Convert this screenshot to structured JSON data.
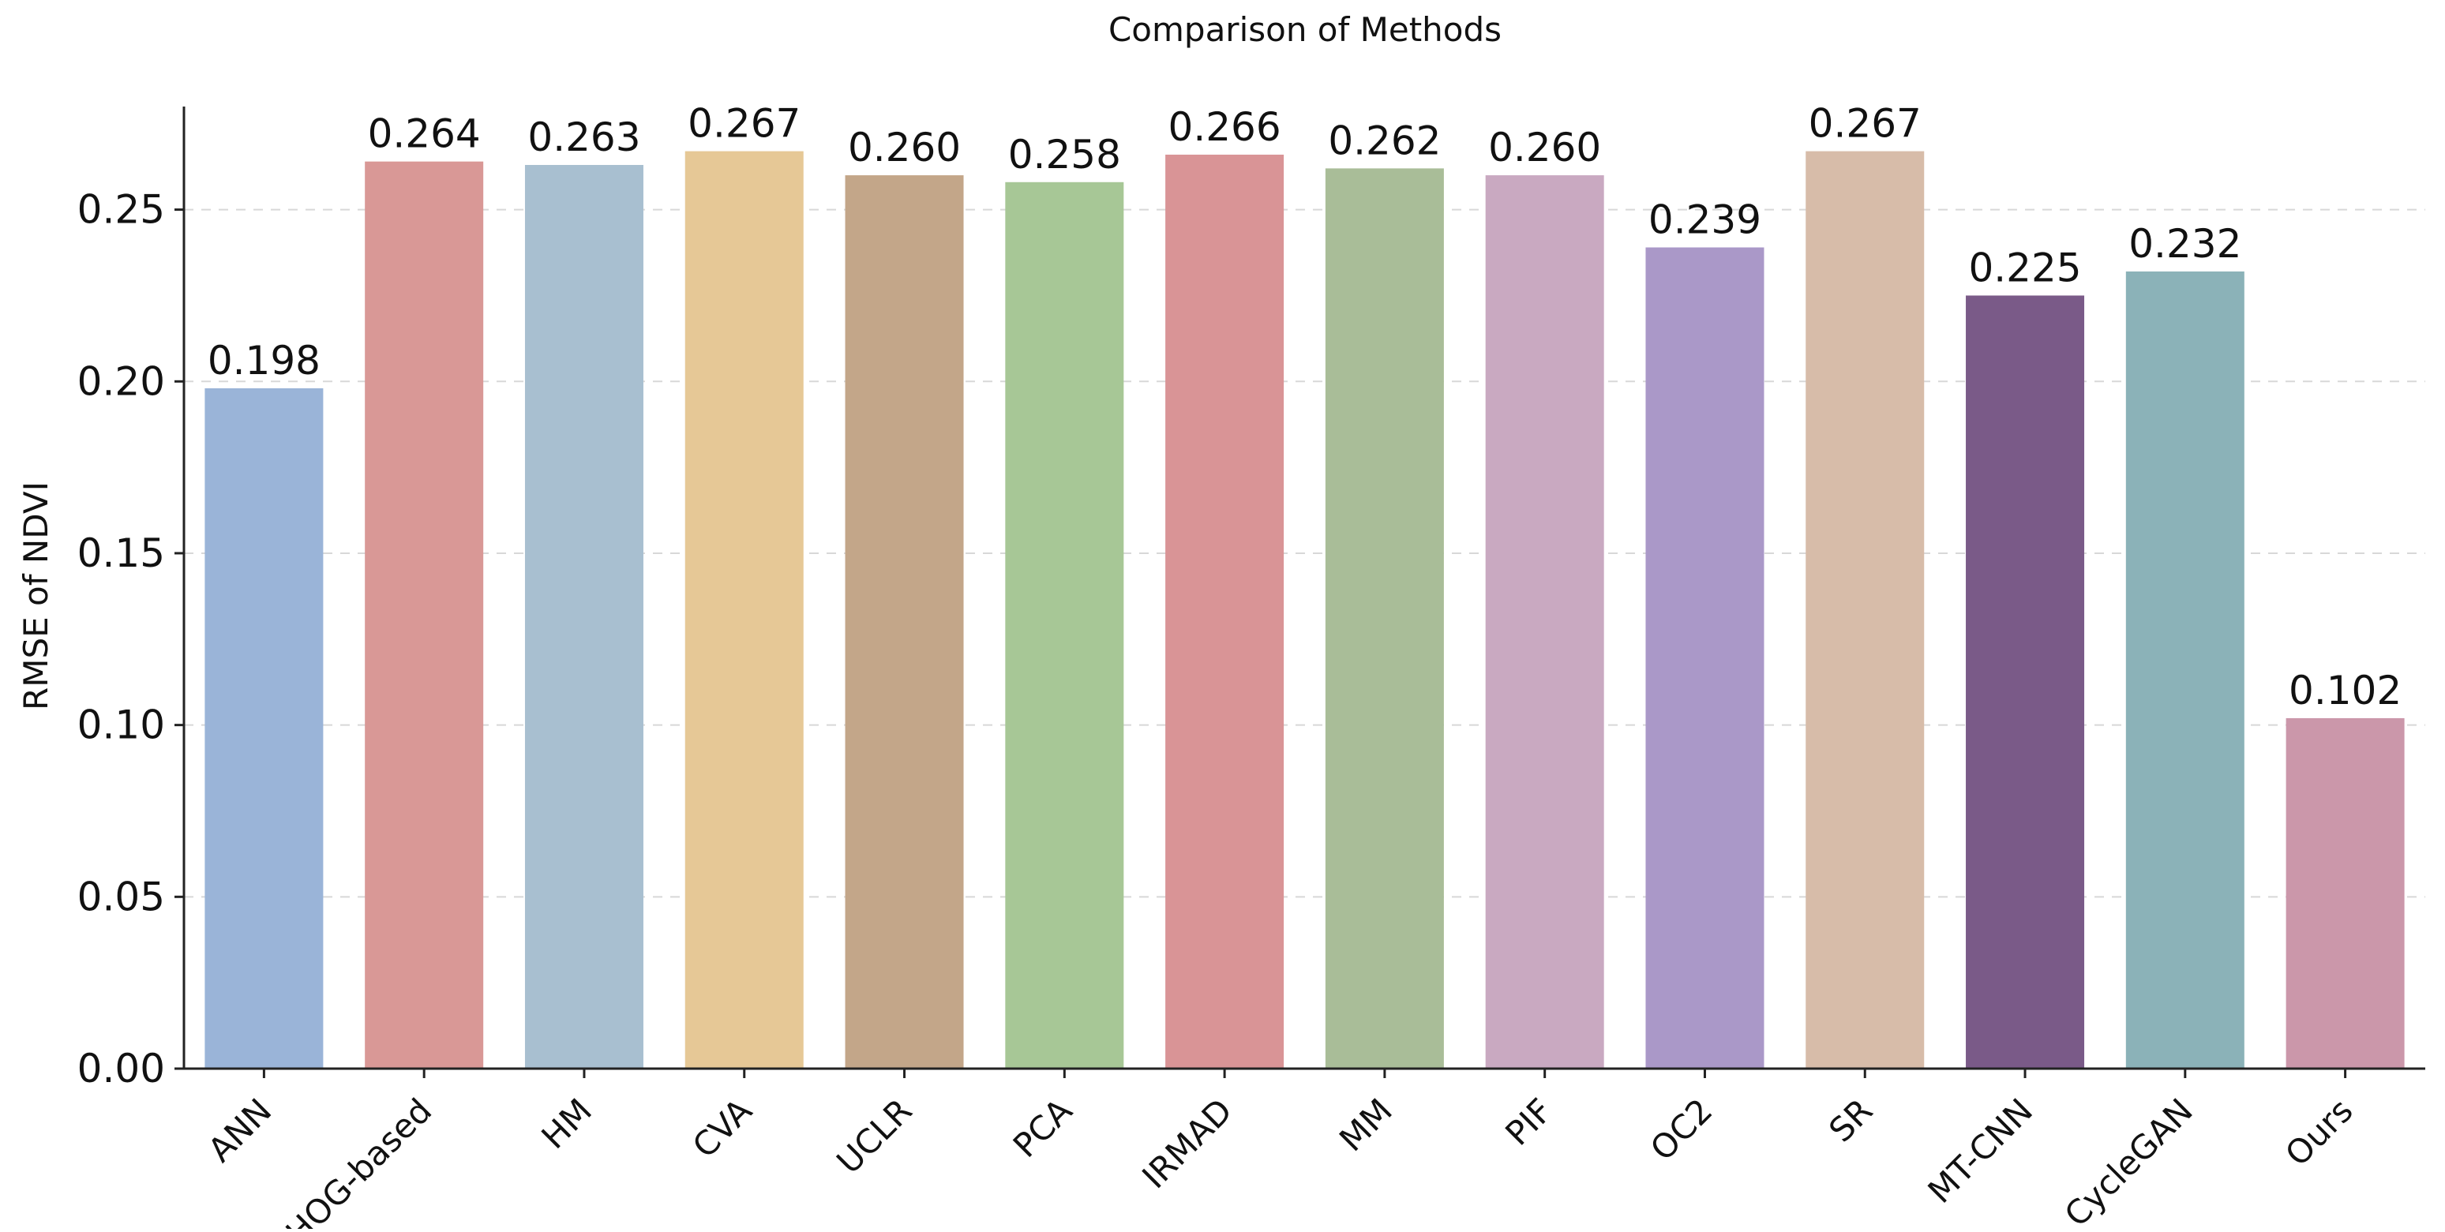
{
  "chart_data": {
    "type": "bar",
    "title": "Comparison of Methods",
    "xlabel": "",
    "ylabel": "RMSE of NDVI",
    "ylim": [
      0,
      0.28
    ],
    "yticks": [
      "0.00",
      "0.05",
      "0.10",
      "0.15",
      "0.20",
      "0.25"
    ],
    "grid": "horizontal dashed",
    "legend": "none",
    "categories": [
      "ANN",
      "HOG-based",
      "HM",
      "CVA",
      "UCLR",
      "PCA",
      "IRMAD",
      "MM",
      "PIF",
      "OC2",
      "SR",
      "MT-CNN",
      "CycleGAN",
      "Ours"
    ],
    "values": [
      0.198,
      0.264,
      0.263,
      0.267,
      0.26,
      0.258,
      0.266,
      0.262,
      0.26,
      0.239,
      0.267,
      0.225,
      0.232,
      0.102
    ],
    "value_labels": [
      "0.198",
      "0.264",
      "0.263",
      "0.267",
      "0.260",
      "0.258",
      "0.266",
      "0.262",
      "0.260",
      "0.239",
      "0.267",
      "0.225",
      "0.232",
      "0.102"
    ],
    "colors": [
      "#9ab4d8",
      "#d99896",
      "#a8bfd0",
      "#e6c896",
      "#c3a689",
      "#a7c796",
      "#d99496",
      "#a9bd98",
      "#c9a9c1",
      "#aa98c8",
      "#d7bca9",
      "#7a5a88",
      "#8bb2b8",
      "#cb97aa"
    ]
  }
}
